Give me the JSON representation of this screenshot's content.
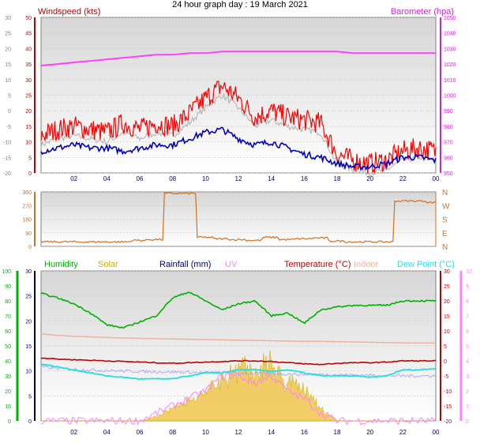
{
  "title": "24 hour graph day : 19 March 2021",
  "colors": {
    "wind_label": "#c00000",
    "baro_label": "#d020d0",
    "wind_gust": "#ff0000",
    "wind_avg": "#0000c0",
    "wind_grey": "#b8b8b8",
    "baro": "#ff40ff",
    "wind_dir": "#d07020",
    "humidity": "#00b000",
    "solar": "#c8b000",
    "rainfall": "#000080",
    "uv": "#ff80ff",
    "temperature": "#c00000",
    "indoor": "#f0b0a0",
    "dew_point": "#20e0e0",
    "plot_bg_top": "#d8d8d8",
    "plot_bg_bottom": "#ffffff"
  },
  "chart_data": [
    {
      "type": "line",
      "title": "Windspeed (kts)",
      "ylabel_left": "Windspeed (kts)",
      "ylabel_right": "Barometer (hpa)",
      "left_axis_ticks": [
        "50",
        "45",
        "40",
        "35",
        "30",
        "25",
        "20",
        "15",
        "10",
        "5",
        "0"
      ],
      "outer_left_ticks": [
        "30",
        "25",
        "20",
        "15",
        "10",
        "5",
        "0",
        "-5",
        "-10",
        "-15",
        "-20"
      ],
      "right_axis_ticks": [
        "1050",
        "1040",
        "1030",
        "1020",
        "1010",
        "1000",
        "990",
        "980",
        "970",
        "960",
        "950"
      ],
      "xticks": [
        "02",
        "04",
        "06",
        "08",
        "10",
        "12",
        "14",
        "16",
        "18",
        "20",
        "22",
        "00"
      ],
      "x": [
        0,
        1,
        2,
        3,
        4,
        5,
        6,
        7,
        8,
        9,
        10,
        11,
        12,
        13,
        14,
        15,
        16,
        17,
        18,
        19,
        20,
        21,
        22,
        23,
        24
      ],
      "series": [
        {
          "name": "Wind gust",
          "values": [
            10,
            12,
            13,
            12,
            11,
            14,
            12,
            14,
            13,
            17,
            22,
            26,
            22,
            16,
            18,
            16,
            15,
            14,
            4,
            2,
            1,
            2,
            5,
            6,
            5
          ]
        },
        {
          "name": "Wind average",
          "values": [
            5,
            6,
            7,
            6,
            6,
            5,
            6,
            7,
            7,
            9,
            11,
            12,
            9,
            7,
            8,
            6,
            4,
            3,
            1,
            0,
            0,
            1,
            3,
            3,
            2
          ]
        },
        {
          "name": "Barometer",
          "values": [
            1019,
            1020,
            1021,
            1022,
            1023,
            1024,
            1025,
            1026,
            1026,
            1027,
            1027,
            1028,
            1028,
            1028,
            1028,
            1028,
            1028,
            1028,
            1028,
            1027,
            1027,
            1027,
            1027,
            1027,
            1027
          ]
        }
      ]
    },
    {
      "type": "scatter",
      "title": "Wind direction",
      "left_axis_ticks": [
        "360",
        "270",
        "180",
        "90",
        "0"
      ],
      "right_axis_ticks": [
        "N",
        "W",
        "S",
        "E",
        "N"
      ],
      "x": [
        0,
        1,
        2,
        3,
        4,
        5,
        6,
        7,
        8,
        9,
        10,
        11,
        12,
        13,
        14,
        15,
        16,
        17,
        18,
        19,
        20,
        21,
        22,
        23,
        24
      ],
      "series": [
        {
          "name": "Wind direction",
          "values": [
            30,
            30,
            30,
            30,
            30,
            30,
            40,
            45,
            350,
            350,
            60,
            50,
            45,
            40,
            60,
            45,
            50,
            55,
            35,
            30,
            30,
            30,
            300,
            300,
            290
          ]
        }
      ]
    },
    {
      "type": "line",
      "legend": [
        "Humidity",
        "Solar",
        "Rainfall (mm)",
        "UV",
        "Temperature (°C)",
        "Indoor",
        "Dew Point (°C)"
      ],
      "left_axis_ticks": [
        "30",
        "25",
        "20",
        "15",
        "10",
        "5",
        "0"
      ],
      "outer_left_ticks": [
        "100",
        "90",
        "80",
        "70",
        "60",
        "50",
        "40",
        "30",
        "20",
        "10",
        "0"
      ],
      "right_axis_ticks": [
        "30",
        "25",
        "20",
        "15",
        "10",
        "5",
        "0",
        "-5",
        "-10",
        "-15",
        "-20"
      ],
      "outer_right_ticks": [
        "10",
        "9",
        "8",
        "7",
        "6",
        "5",
        "4",
        "3",
        "2",
        "1",
        "0"
      ],
      "x": [
        0,
        1,
        2,
        3,
        4,
        5,
        6,
        7,
        8,
        9,
        10,
        11,
        12,
        13,
        14,
        15,
        16,
        17,
        18,
        19,
        20,
        21,
        22,
        23,
        24
      ],
      "series": [
        {
          "name": "Humidity",
          "values": [
            85,
            82,
            78,
            72,
            64,
            62,
            66,
            70,
            82,
            86,
            80,
            74,
            78,
            80,
            70,
            72,
            65,
            74,
            76,
            77,
            77,
            77,
            80,
            80,
            80
          ]
        },
        {
          "name": "Temperature (°C)",
          "values": [
            1,
            0.6,
            0.4,
            0.2,
            0,
            -0.2,
            -0.4,
            -0.6,
            -0.8,
            -0.6,
            -0.4,
            -0.2,
            0,
            0,
            -0.2,
            -0.6,
            -1,
            -1.2,
            -0.8,
            -0.6,
            -0.6,
            -0.4,
            0,
            0,
            0
          ]
        },
        {
          "name": "Indoor",
          "values": [
            9,
            8.5,
            8.2,
            8,
            7.8,
            7.6,
            7.5,
            7.4,
            7.3,
            7.2,
            7.1,
            7,
            6.9,
            6.8,
            6.7,
            6.6,
            6.5,
            6.5,
            6.4,
            6.3,
            6.2,
            6.1,
            6,
            6,
            6
          ]
        },
        {
          "name": "Dew Point (°C)",
          "values": [
            -1,
            -2,
            -3,
            -4,
            -5,
            -5.5,
            -6,
            -6,
            -6,
            -5,
            -4,
            -4,
            -3,
            -3,
            -3.5,
            -3,
            -4,
            -5,
            -5,
            -5,
            -5.5,
            -5,
            -3,
            -3,
            -2.5
          ]
        },
        {
          "name": "Rainfall (mm)",
          "values": [
            0,
            0,
            0,
            0,
            0,
            0,
            0,
            0,
            0,
            0,
            0,
            0,
            0,
            0,
            0,
            0,
            0,
            0,
            0,
            0,
            0,
            0,
            0,
            0,
            0
          ]
        },
        {
          "name": "Solar",
          "values": [
            0,
            0,
            0,
            0,
            0,
            0,
            0,
            1,
            3,
            5,
            6,
            10,
            12,
            12,
            13,
            9,
            7,
            3,
            0,
            0,
            0,
            0,
            0,
            0,
            0
          ]
        },
        {
          "name": "UV",
          "values": [
            0,
            0,
            0,
            0,
            0,
            0,
            0,
            0.5,
            1,
            1.5,
            2,
            3,
            3,
            2.5,
            3,
            2,
            1.5,
            0.5,
            0,
            0,
            0,
            0,
            0,
            0,
            0
          ]
        }
      ]
    }
  ]
}
